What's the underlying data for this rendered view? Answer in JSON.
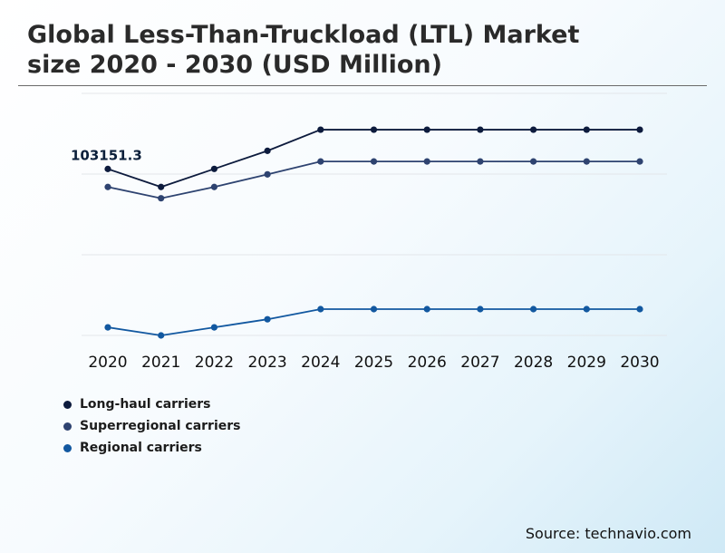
{
  "header": {
    "title_line1": "Global Less-Than-Truckload (LTL) Market",
    "title_line2": "size 2020 - 2030 (USD Million)"
  },
  "source": "Source: technavio.com",
  "chart_data": {
    "type": "line",
    "title": "Global Less-Than-Truckload (LTL) Market size 2020 - 2030 (USD Million)",
    "xlabel": "",
    "ylabel": "",
    "x": [
      "2020",
      "2021",
      "2022",
      "2023",
      "2024",
      "2025",
      "2026",
      "2027",
      "2028",
      "2029",
      "2030"
    ],
    "ylim": [
      0,
      150000
    ],
    "grid": true,
    "legend_position": "bottom-left",
    "series": [
      {
        "name": "Long-haul carriers",
        "color": "#0d1b3d",
        "values": [
          103151.3,
          92000,
          103200,
          114400,
          127500,
          127500,
          127500,
          127500,
          127500,
          127500,
          127500
        ]
      },
      {
        "name": "Superregional carriers",
        "color": "#2e4370",
        "values": [
          92000,
          85000,
          92000,
          99800,
          107800,
          107800,
          107800,
          107800,
          107800,
          107800,
          107800
        ]
      },
      {
        "name": "Regional carriers",
        "color": "#1258a0",
        "values": [
          5000,
          0,
          5000,
          10000,
          16300,
          16300,
          16300,
          16300,
          16300,
          16300,
          16300
        ]
      }
    ],
    "annotations": [
      {
        "series": 0,
        "index": 0,
        "text": "103151.3"
      }
    ]
  }
}
